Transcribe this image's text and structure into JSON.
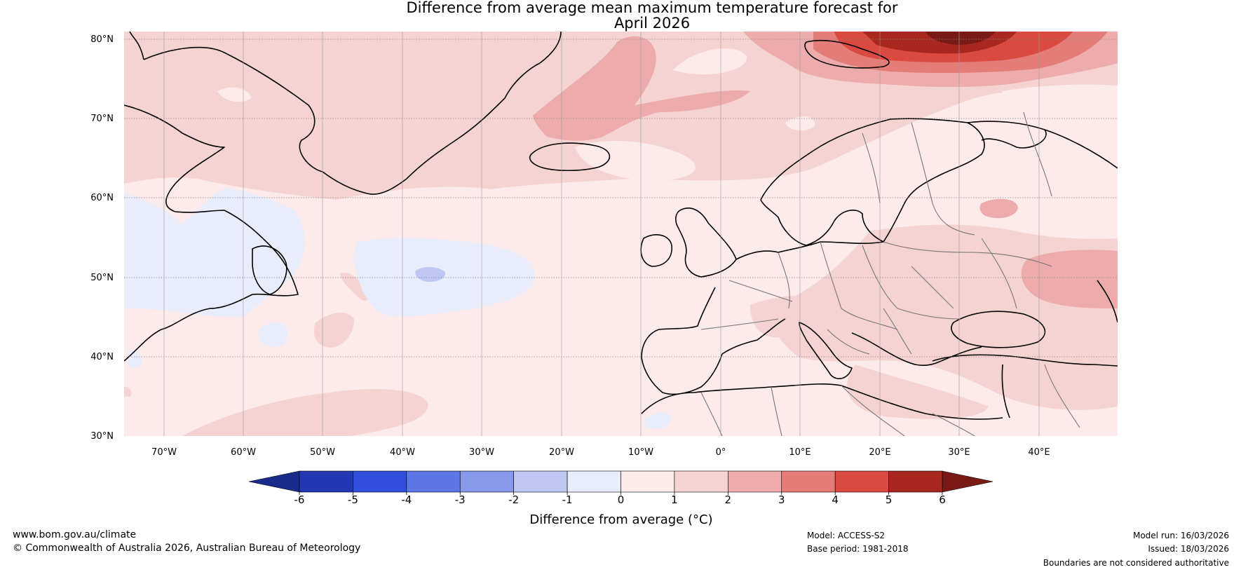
{
  "title": {
    "line1": "Difference from average mean maximum temperature forecast for",
    "line2": "April 2026"
  },
  "map": {
    "lat_labels": [
      "80°N",
      "70°N",
      "60°N",
      "50°N",
      "40°N",
      "30°N"
    ],
    "lon_labels": [
      "70°W",
      "60°W",
      "50°W",
      "40°W",
      "30°W",
      "20°W",
      "10°W",
      "0°",
      "10°E",
      "20°E",
      "30°E",
      "40°E"
    ],
    "region": "North Atlantic and Europe, 75°W–50°E, 30°N–81°N"
  },
  "colorbar": {
    "label": "Difference from average (°C)",
    "ticks": [
      "-6",
      "-5",
      "-4",
      "-3",
      "-2",
      "-1",
      "0",
      "1",
      "2",
      "3",
      "4",
      "5",
      "6"
    ],
    "colors": {
      "below_min": "#1a2a8a",
      "bins": [
        "#2438b4",
        "#2f4fdc",
        "#5d76e6",
        "#8898ea",
        "#bfc8f3",
        "#e9ecfb",
        "#fcebea",
        "#f5d3d2",
        "#edacab",
        "#e47c78",
        "#da4a40",
        "#a82820"
      ],
      "above_max": "#7a1a16"
    }
  },
  "footer": {
    "website": "www.bom.gov.au/climate",
    "copyright": "© Commonwealth of Australia 2026, Australian Bureau of Meteorology",
    "model": "Model: ACCESS-S2",
    "base_period": "Base period: 1981-2018",
    "model_run": "Model run: 16/03/2026",
    "issued": "Issued: 18/03/2026",
    "disclaimer": "Boundaries are not considered authoritative"
  }
}
